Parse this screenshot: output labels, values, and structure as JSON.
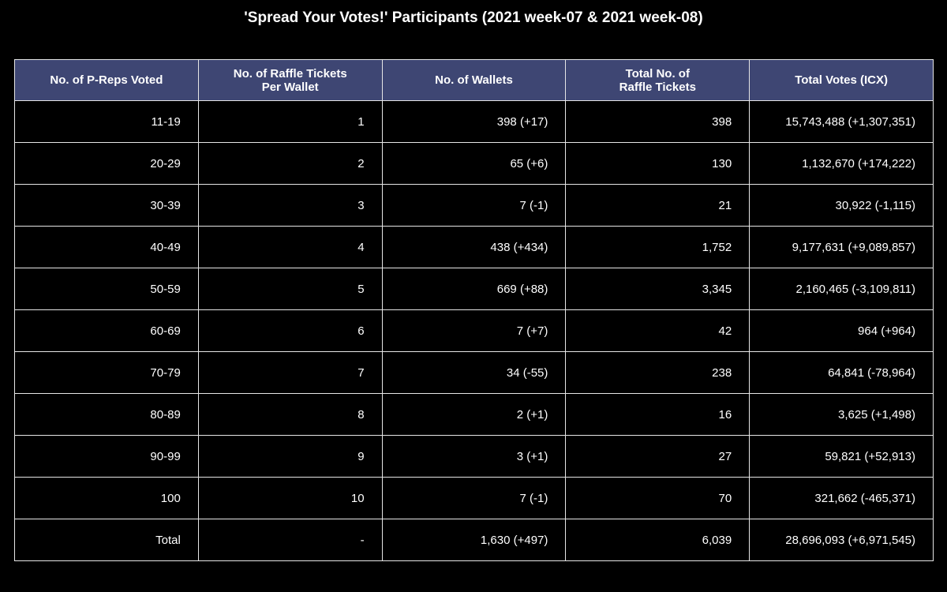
{
  "chart_data": {
    "type": "table",
    "title": "'Spread Your Votes!' Participants (2021 week-07 & 2021 week-08)",
    "columns": [
      "No. of P-Reps Voted",
      "No. of Raffle Tickets\nPer Wallet",
      "No. of Wallets",
      "Total No. of\nRaffle Tickets",
      "Total Votes (ICX)"
    ],
    "rows": [
      [
        "11-19",
        "1",
        "398 (+17)",
        "398",
        "15,743,488 (+1,307,351)"
      ],
      [
        "20-29",
        "2",
        "65 (+6)",
        "130",
        "1,132,670 (+174,222)"
      ],
      [
        "30-39",
        "3",
        "7 (-1)",
        "21",
        "30,922 (-1,115)"
      ],
      [
        "40-49",
        "4",
        "438 (+434)",
        "1,752",
        "9,177,631 (+9,089,857)"
      ],
      [
        "50-59",
        "5",
        "669 (+88)",
        "3,345",
        "2,160,465 (-3,109,811)"
      ],
      [
        "60-69",
        "6",
        "7 (+7)",
        "42",
        "964 (+964)"
      ],
      [
        "70-79",
        "7",
        "34 (-55)",
        "238",
        "64,841 (-78,964)"
      ],
      [
        "80-89",
        "8",
        "2 (+1)",
        "16",
        "3,625 (+1,498)"
      ],
      [
        "90-99",
        "9",
        "3 (+1)",
        "27",
        "59,821 (+52,913)"
      ],
      [
        "100",
        "10",
        "7 (-1)",
        "70",
        "321,662 (-465,371)"
      ],
      [
        "Total",
        "-",
        "1,630 (+497)",
        "6,039",
        "28,696,093 (+6,971,545)"
      ]
    ],
    "colors": {
      "header_background": "#3e4673",
      "cell_background": "#000000",
      "text": "#ffffff",
      "border": "#e6e6e6"
    }
  }
}
